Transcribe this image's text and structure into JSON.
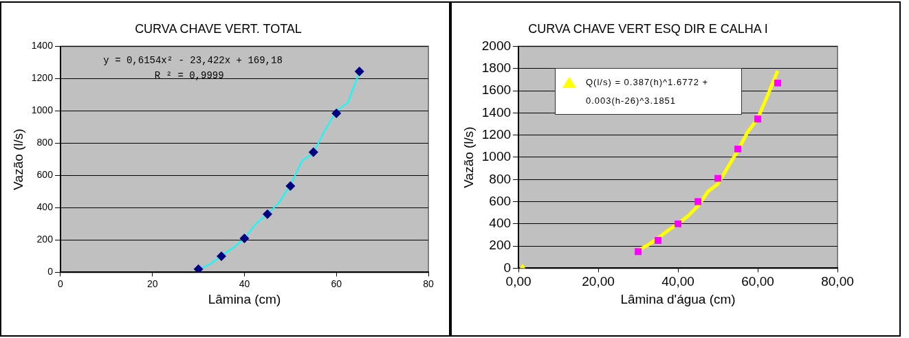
{
  "chart_data": [
    {
      "type": "scatter",
      "title": "CURVA CHAVE VERT. TOTAL",
      "xlabel": "Lâmina (cm)",
      "ylabel": "Vazão (l/s)",
      "xlim": [
        0,
        80
      ],
      "xticks": [
        0,
        20,
        40,
        60,
        80
      ],
      "ylim": [
        0,
        1400
      ],
      "yticks": [
        0,
        200,
        400,
        600,
        800,
        1000,
        1200,
        1400
      ],
      "grid": "y",
      "legend": false,
      "annotations": [
        "y = 0,6154x² - 23,422x + 169,18",
        "R ² = 0,9999"
      ],
      "series": [
        {
          "type": "line",
          "color": "#00ffff",
          "marker": "none",
          "x": [
            30,
            32.5,
            35,
            37.5,
            40,
            42.5,
            45,
            47.5,
            50,
            52.5,
            55,
            57.5,
            60,
            62.5,
            65
          ],
          "values": [
            15,
            50,
            100,
            150,
            210,
            300,
            360,
            430,
            540,
            690,
            740,
            880,
            1000,
            1050,
            1240
          ]
        },
        {
          "type": "scatter",
          "color": "#000080",
          "marker": "diamond",
          "x": [
            30,
            35,
            40,
            45,
            50,
            55,
            60,
            65
          ],
          "values": [
            20,
            100,
            210,
            360,
            535,
            745,
            985,
            1245
          ]
        }
      ]
    },
    {
      "type": "scatter",
      "title": "CURVA CHAVE VERT ESQ DIR E CALHA I",
      "xlabel": "Lâmina d'água (cm)",
      "ylabel": "Vazão (l/s)",
      "xlim": [
        0,
        80
      ],
      "xticks": [
        {
          "value": 0,
          "label": "0,00"
        },
        {
          "value": 20,
          "label": "20,00"
        },
        {
          "value": 40,
          "label": "40,00"
        },
        {
          "value": 60,
          "label": "60,00"
        },
        {
          "value": 80,
          "label": "80,00"
        }
      ],
      "ylim": [
        0,
        2000
      ],
      "yticks": [
        0,
        200,
        400,
        600,
        800,
        1000,
        1200,
        1400,
        1600,
        1800,
        2000
      ],
      "grid": "y",
      "legend": "top left",
      "series": [
        {
          "type": "scatter",
          "color": "#ff00ff",
          "marker": "square",
          "x": [
            30,
            35,
            40,
            45,
            50,
            55,
            60,
            65
          ],
          "values": [
            150,
            250,
            400,
            600,
            810,
            1075,
            1345,
            1670
          ]
        },
        {
          "type": "line",
          "color": "#ffff00",
          "marker": "none",
          "x": [
            30,
            32.5,
            35,
            37.5,
            40,
            42.5,
            45,
            47.5,
            50,
            52.5,
            55,
            57.5,
            60,
            62.5,
            65
          ],
          "values": [
            160,
            210,
            270,
            340,
            400,
            470,
            560,
            690,
            760,
            910,
            1060,
            1230,
            1350,
            1560,
            1780
          ]
        },
        {
          "type": "scatter",
          "name": "Q(l/s) = 0.387(h)^1.6772 + 0.003(h-26)^3.1851",
          "color": "#ffff00",
          "marker": "triangle",
          "x": [
            1
          ],
          "values": [
            0
          ]
        }
      ]
    }
  ]
}
